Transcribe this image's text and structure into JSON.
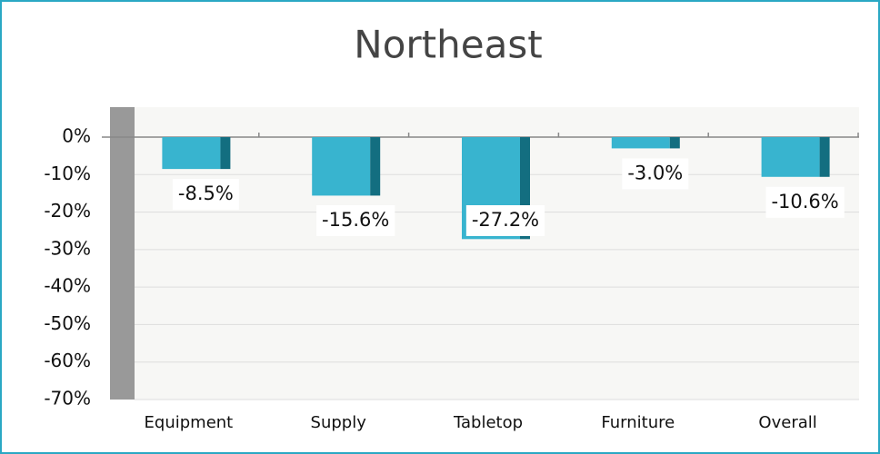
{
  "chart_data": {
    "type": "bar",
    "title": "Northeast",
    "categories": [
      "Equipment",
      "Supply",
      "Tabletop",
      "Furniture",
      "Overall"
    ],
    "values": [
      -8.5,
      -15.6,
      -27.2,
      -3.0,
      -10.6
    ],
    "value_labels": [
      "-8.5%",
      "-15.6%",
      "-27.2%",
      "-3.0%",
      "-10.6%"
    ],
    "color": "#38b4cf",
    "side_color": "#136e80",
    "ylim": [
      -70,
      8
    ],
    "yticks": [
      {
        "value": 0,
        "label": "0%"
      },
      {
        "value": -10,
        "label": "-10%"
      },
      {
        "value": -20,
        "label": "-20%"
      },
      {
        "value": -30,
        "label": "-30%"
      },
      {
        "value": -40,
        "label": "-40%"
      },
      {
        "value": -50,
        "label": "-50%"
      },
      {
        "value": -60,
        "label": "-60%"
      },
      {
        "value": -70,
        "label": "-70%"
      }
    ],
    "grid": true
  }
}
